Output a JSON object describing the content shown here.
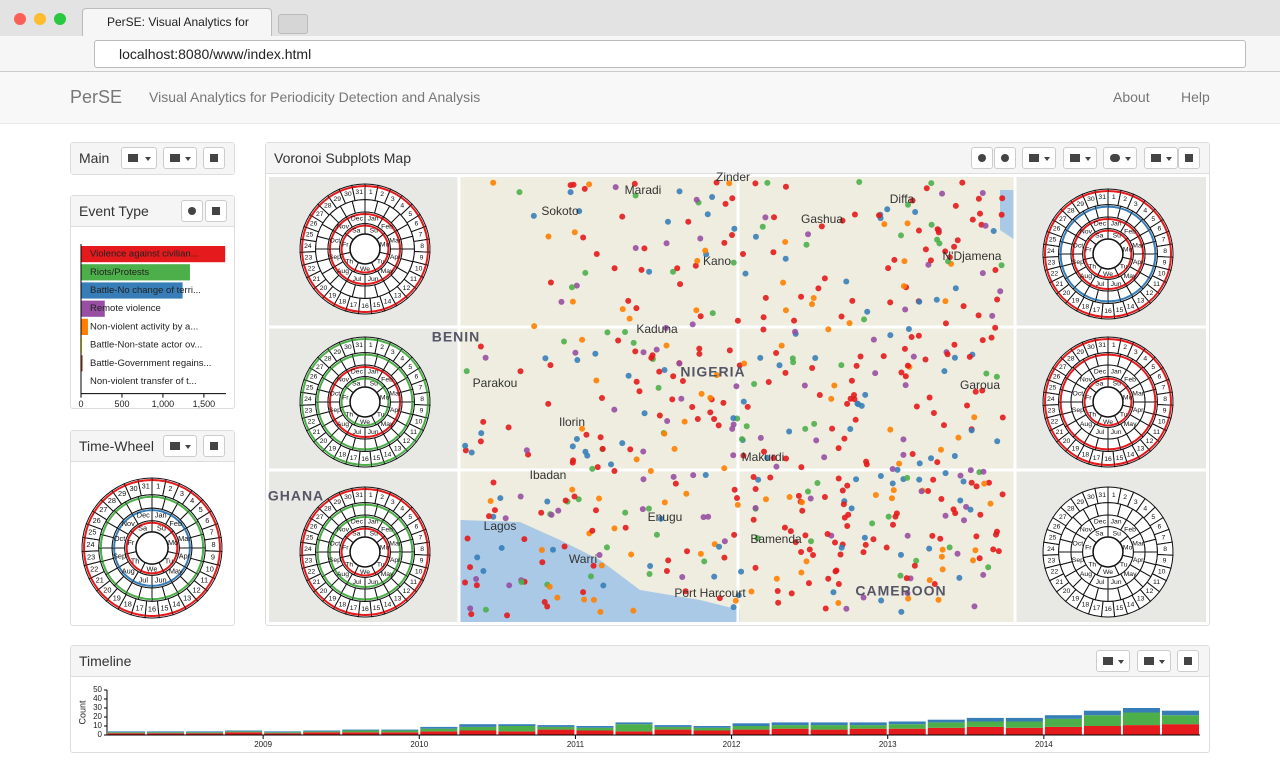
{
  "browser": {
    "tab_title": "PerSE: Visual Analytics for",
    "url": "localhost:8080/www/index.html"
  },
  "navbar": {
    "brand": "PerSE",
    "subtitle": "Visual Analytics for Periodicity Detection and Analysis",
    "links": [
      "About",
      "Help"
    ]
  },
  "panels": {
    "main": "Main",
    "event_type": "Event Type",
    "time_wheel": "Time-Wheel",
    "map": "Voronoi Subplots Map",
    "timeline": "Timeline"
  },
  "time_wheel": {
    "days": [
      "Su",
      "Mo",
      "Tu",
      "We",
      "Th",
      "Fr",
      "Sa"
    ],
    "months": [
      "Jan",
      "Feb",
      "Mar",
      "Apr",
      "May",
      "Jun",
      "Jul",
      "Aug",
      "Sep",
      "Oct",
      "Nov",
      "Dec"
    ],
    "dates": [
      1,
      2,
      3,
      4,
      5,
      6,
      7,
      8,
      9,
      10,
      11,
      12,
      13,
      14,
      15,
      16,
      17,
      18,
      19,
      20,
      21,
      22,
      23,
      24,
      25,
      26,
      27,
      28,
      29,
      30,
      31
    ]
  },
  "map": {
    "labels": [
      "Maradi",
      "Zinder",
      "Sokoto",
      "Gashua",
      "Diffa",
      "Kano",
      "N'Djamena",
      "Kaduna",
      "BENIN",
      "NIGERIA",
      "Parakou",
      "Garoua",
      "Ilorin",
      "Makurdi",
      "Ibadan",
      "Lagos",
      "Enugu",
      "Warri",
      "Port Harcourt",
      "Bamenda",
      "CAMEROON",
      "GHANA"
    ]
  },
  "chart_data": [
    {
      "type": "hbar",
      "categories": [
        "Violence against civilian...",
        "Riots/Protests",
        "Battle-No change of terri...",
        "Remote violence",
        "Non-violent activity by a...",
        "Battle-Non-state actor ov...",
        "Battle-Government regains...",
        "Non-violent transfer of t..."
      ],
      "values": [
        1760,
        1330,
        1240,
        290,
        85,
        15,
        20,
        5
      ],
      "colors": [
        "#e41a1c",
        "#4daf4a",
        "#377eb8",
        "#984ea3",
        "#ff7f00",
        "#ffff33",
        "#a65628",
        "#f781bf"
      ],
      "xlim": [
        0,
        1770
      ],
      "xticks": [
        0,
        500,
        {
          "value": 1000,
          "label": "1,000"
        },
        {
          "value": 1500,
          "label": "1,500"
        }
      ]
    },
    {
      "type": "stacked_bar",
      "y_label": "Count",
      "x": [
        2008,
        2008.25,
        2008.5,
        2008.75,
        2009,
        2009.25,
        2009.5,
        2009.75,
        2010,
        2010.25,
        2010.5,
        2010.75,
        2011,
        2011.25,
        2011.5,
        2011.75,
        2012,
        2012.25,
        2012.5,
        2012.75,
        2013,
        2013.25,
        2013.5,
        2013.75,
        2014,
        2014.25,
        2014.5,
        2014.75
      ],
      "series": [
        {
          "color": "#e41a1c",
          "values": [
            2,
            2,
            2,
            3,
            2,
            3,
            3,
            3,
            4,
            5,
            4,
            6,
            5,
            4,
            6,
            5,
            6,
            7,
            6,
            7,
            7,
            8,
            9,
            8,
            9,
            10,
            11,
            12
          ]
        },
        {
          "color": "#4daf4a",
          "values": [
            1,
            1,
            1,
            1,
            1,
            1,
            2,
            2,
            3,
            4,
            6,
            3,
            3,
            8,
            3,
            3,
            4,
            4,
            5,
            4,
            5,
            6,
            6,
            7,
            9,
            12,
            14,
            10
          ]
        },
        {
          "color": "#377eb8",
          "values": [
            1,
            1,
            1,
            1,
            1,
            1,
            1,
            1,
            2,
            3,
            2,
            2,
            2,
            2,
            2,
            2,
            3,
            3,
            3,
            3,
            3,
            3,
            4,
            4,
            4,
            5,
            5,
            5
          ]
        }
      ],
      "xlim": [
        2008,
        2015
      ],
      "xticks": [
        2009,
        2010,
        2011,
        2012,
        2013,
        2014
      ],
      "ylim": [
        0,
        50
      ],
      "yticks": [
        0,
        10,
        20,
        30,
        40,
        50
      ]
    }
  ]
}
